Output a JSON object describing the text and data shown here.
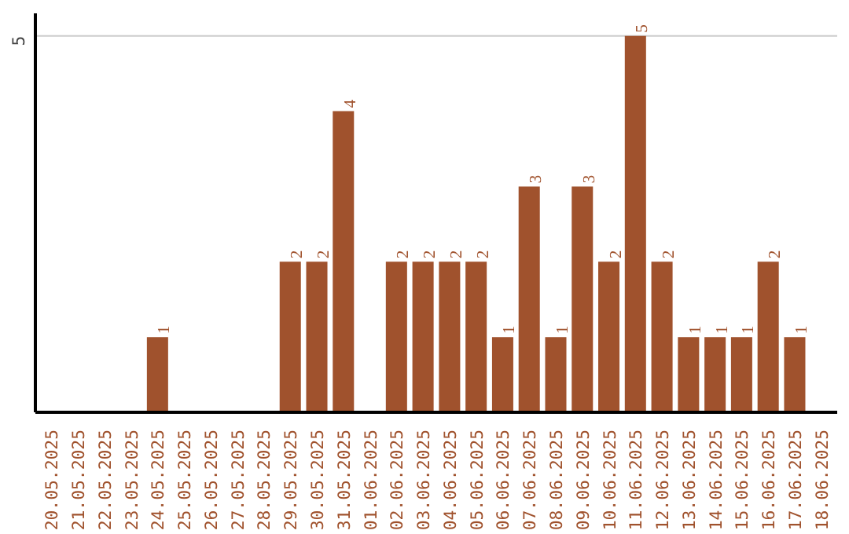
{
  "chart_data": {
    "type": "bar",
    "categories": [
      "20.05.2025",
      "21.05.2025",
      "22.05.2025",
      "23.05.2025",
      "24.05.2025",
      "25.05.2025",
      "26.05.2025",
      "27.05.2025",
      "28.05.2025",
      "29.05.2025",
      "30.05.2025",
      "31.05.2025",
      "01.06.2025",
      "02.06.2025",
      "03.06.2025",
      "04.06.2025",
      "05.06.2025",
      "06.06.2025",
      "07.06.2025",
      "08.06.2025",
      "09.06.2025",
      "10.06.2025",
      "11.06.2025",
      "12.06.2025",
      "13.06.2025",
      "14.06.2025",
      "15.06.2025",
      "16.06.2025",
      "17.06.2025",
      "18.06.2025"
    ],
    "values": [
      0,
      0,
      0,
      0,
      1,
      0,
      0,
      0,
      0,
      2,
      2,
      4,
      0,
      2,
      2,
      2,
      2,
      1,
      3,
      1,
      3,
      2,
      5,
      2,
      1,
      1,
      1,
      2,
      1,
      0
    ],
    "value_labels": [
      null,
      null,
      null,
      null,
      "1",
      null,
      null,
      null,
      null,
      "2",
      "2",
      "4",
      null,
      "2",
      "2",
      "2",
      "2",
      "1",
      "3",
      "1",
      "3",
      "2",
      "5",
      "2",
      "1",
      "1",
      "1",
      "2",
      "1",
      null
    ],
    "color": "#a0522d",
    "ylim": [
      0,
      5.3
    ],
    "yticks": [
      5
    ],
    "grid": "y"
  }
}
